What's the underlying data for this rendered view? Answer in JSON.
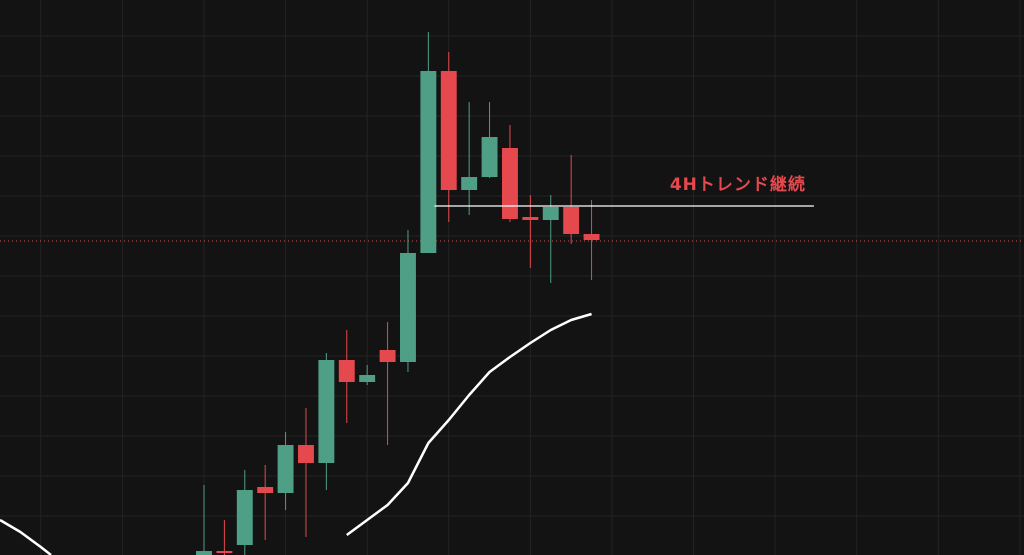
{
  "chart_data": {
    "type": "candlestick",
    "background": "#131313",
    "up_color": "#4f9f87",
    "down_color": "#e5484d",
    "x": [
      0,
      1,
      2,
      3,
      4,
      5,
      6,
      7,
      8,
      9,
      10,
      11,
      12,
      13,
      14,
      15,
      16,
      17,
      18,
      19
    ],
    "open": [
      0,
      4,
      10,
      68,
      62,
      110,
      92,
      195,
      173,
      205,
      193,
      302,
      484,
      365,
      378,
      407,
      338,
      335,
      348,
      321
    ],
    "high": [
      70,
      35,
      85,
      90,
      123,
      147,
      202,
      225,
      190,
      233,
      325,
      523,
      503,
      453,
      453,
      430,
      360,
      360,
      400,
      355
    ],
    "low": [
      0,
      0,
      0,
      15,
      45,
      18,
      65,
      132,
      170,
      110,
      183,
      302,
      333,
      340,
      377,
      333,
      287,
      272,
      311,
      275
    ],
    "close": [
      4,
      2,
      65,
      62,
      110,
      92,
      195,
      173,
      180,
      193,
      302,
      484,
      365,
      378,
      418,
      336,
      335,
      348,
      321,
      315
    ],
    "moving_average": {
      "color": "#ffffff",
      "x": [
        -10,
        -9,
        -8,
        -7.5,
        5.8,
        7,
        8,
        9,
        10,
        11,
        12,
        13,
        14,
        15,
        16,
        17,
        18,
        19
      ],
      "values": [
        35,
        23,
        8,
        0,
        null,
        20,
        35,
        50,
        72,
        112,
        135,
        160,
        183,
        198,
        212,
        225,
        235,
        241
      ]
    },
    "xlim": [
      -10,
      40.2
    ],
    "ylim": [
      0,
      555
    ],
    "xgrid": [
      -8,
      -4,
      0,
      4,
      8,
      12,
      16,
      20,
      24,
      28,
      32,
      36,
      40
    ],
    "ygrid": [
      39,
      79,
      119,
      159,
      199,
      239,
      279,
      319,
      359,
      399,
      439,
      479,
      519
    ],
    "price_line": {
      "value": 314,
      "color": "#e5484d"
    },
    "annotation": {
      "text": "4Hトレンド継続",
      "value": 349,
      "x": [
        11.3,
        29.9
      ],
      "line_color": "#ffffff",
      "text_color": "#e5484d"
    }
  }
}
